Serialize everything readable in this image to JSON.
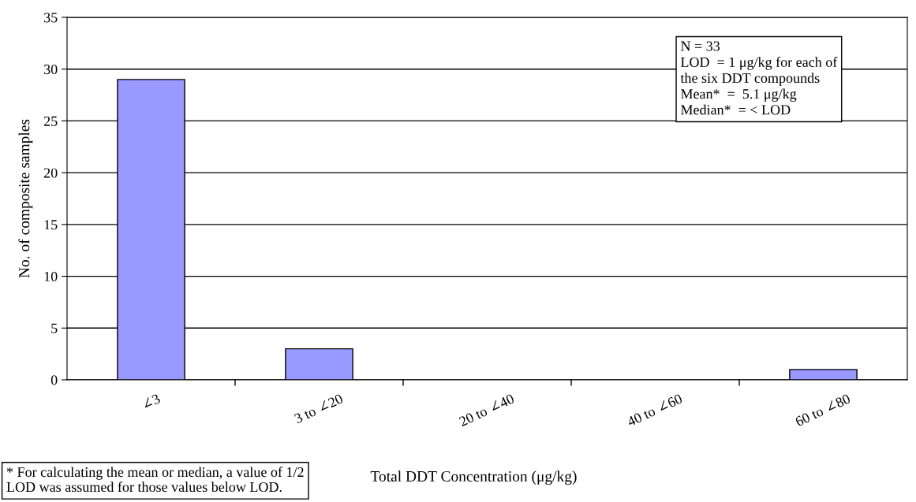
{
  "chart_data": {
    "type": "bar",
    "xlabel": "Total DDT Concentration (μg/kg)",
    "ylabel": "No. of composite samples",
    "categories": [
      "∠3",
      "3 to ∠20",
      "20 to ∠40",
      "40 to ∠60",
      "60 to ∠80"
    ],
    "values": [
      29,
      3,
      0,
      0,
      1
    ],
    "color": "#9999ff",
    "ylim": [
      0,
      35
    ],
    "yticks": [
      0,
      5,
      10,
      15,
      20,
      25,
      30,
      35
    ],
    "grid": "y",
    "annotations": [
      "N = 33\nLOD  = 1 μg/kg for each of\nthe six DDT compounds\nMean*  =  5.1 μg/kg\nMedian*  = < LOD",
      "* For calculating the mean or median, a value of 1/2\nLOD was assumed for those values below LOD."
    ]
  }
}
